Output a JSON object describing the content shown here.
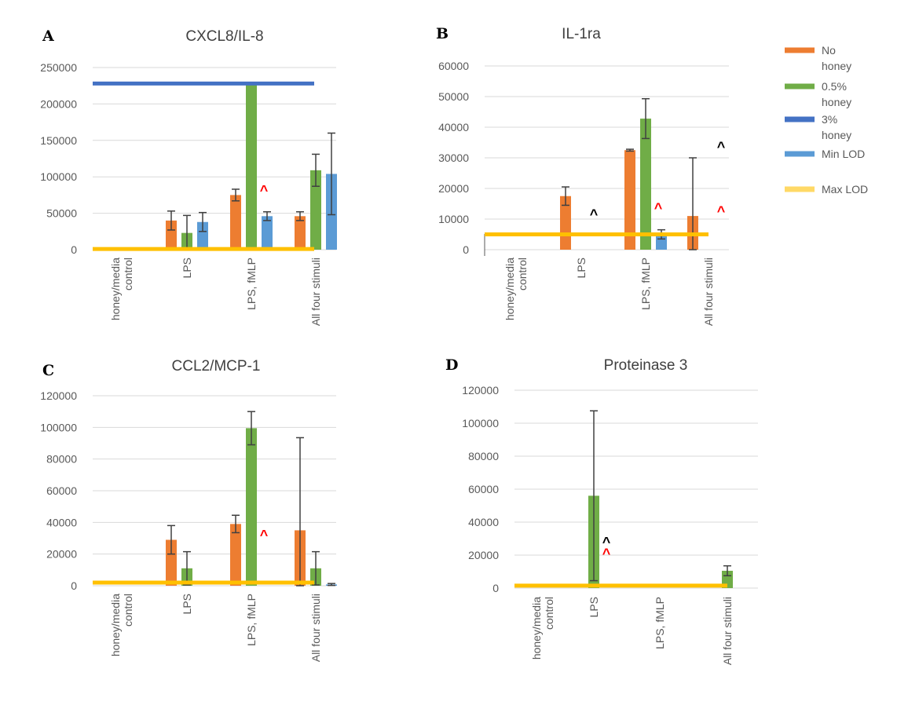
{
  "colors": {
    "no_honey": "#ED7D31",
    "honey_05": "#70AD47",
    "honey_3": "#4472C4",
    "min_lod": "#5B9BD5",
    "max_lod": "#FFC000",
    "grid": "#D9D9D9",
    "err": "#404040",
    "caret_red": "#FF0000",
    "caret_black": "#000000"
  },
  "legend": [
    {
      "lines": [
        "No",
        "honey"
      ],
      "color": "#ED7D31"
    },
    {
      "lines": [
        "0.5%",
        "honey"
      ],
      "color": "#70AD47"
    },
    {
      "lines": [
        "3%",
        "honey"
      ],
      "color": "#4472C4"
    },
    {
      "lines": [
        "Min LOD"
      ],
      "color": "#5B9BD5"
    },
    {
      "lines": [
        "Max LOD"
      ],
      "color": "#FFD966"
    }
  ],
  "chart_data": [
    {
      "panel": "A",
      "title": "CXCL8/IL-8",
      "type": "bar",
      "categories": [
        "honey/media control",
        "LPS",
        "LPS, fMLP",
        "All four stimuli"
      ],
      "yticks": [
        0,
        50000,
        100000,
        150000,
        200000,
        250000
      ],
      "ylim": [
        0,
        250000
      ],
      "series": [
        {
          "name": "No honey",
          "values": [
            null,
            40000,
            75000,
            46000
          ],
          "err": [
            null,
            13000,
            8000,
            6000
          ]
        },
        {
          "name": "0.5% honey",
          "values": [
            null,
            23000,
            228000,
            109000
          ],
          "err": [
            null,
            24000,
            null,
            22000
          ]
        },
        {
          "name": "3% honey",
          "values": [
            null,
            38000,
            46000,
            104000
          ],
          "err": [
            null,
            13000,
            6000,
            56000
          ]
        }
      ],
      "lines": [
        {
          "name": "3% honey",
          "y": 228000
        },
        {
          "name": "Max LOD",
          "y": 1000
        }
      ],
      "markers": [
        {
          "text": "^",
          "color": "red",
          "cat": 2,
          "y": 75000
        }
      ]
    },
    {
      "panel": "B",
      "title": "IL-1ra",
      "type": "bar",
      "categories": [
        "honey/media control",
        "LPS",
        "LPS, fMLP",
        "All four stimuli"
      ],
      "yticks": [
        0,
        10000,
        20000,
        30000,
        40000,
        50000,
        60000
      ],
      "ylim": [
        0,
        60000
      ],
      "series": [
        {
          "name": "No honey",
          "values": [
            null,
            17500,
            32500,
            11000
          ],
          "err": [
            null,
            3000,
            300,
            19000
          ]
        },
        {
          "name": "0.5% honey",
          "values": [
            null,
            null,
            42800,
            null
          ],
          "err": [
            null,
            null,
            6500,
            null
          ]
        },
        {
          "name": "3% honey",
          "values": [
            null,
            null,
            5000,
            null
          ],
          "err": [
            null,
            null,
            1500,
            null
          ]
        }
      ],
      "lines": [
        {
          "name": "Max LOD",
          "y": 5000
        }
      ],
      "markers": [
        {
          "text": "^",
          "color": "black",
          "cat": 1,
          "y": 10000
        },
        {
          "text": "^",
          "color": "red",
          "cat": 2,
          "y": 12000
        },
        {
          "text": "^",
          "color": "black",
          "cat": 3,
          "y": 32000
        },
        {
          "text": "^",
          "color": "red",
          "cat": 3,
          "y": 11000
        }
      ]
    },
    {
      "panel": "C",
      "title": "CCL2/MCP-1",
      "type": "bar",
      "categories": [
        "honey/media control",
        "LPS",
        "LPS, fMLP",
        "All four stimuli"
      ],
      "yticks": [
        0,
        20000,
        40000,
        60000,
        80000,
        100000,
        120000
      ],
      "ylim": [
        0,
        120000
      ],
      "series": [
        {
          "name": "No honey",
          "values": [
            null,
            29000,
            39000,
            35000
          ],
          "err": [
            null,
            9000,
            5500,
            58500
          ]
        },
        {
          "name": "0.5% honey",
          "values": [
            null,
            11000,
            99500,
            11000
          ],
          "err": [
            null,
            10500,
            10500,
            10500
          ]
        },
        {
          "name": "3% honey",
          "values": [
            null,
            null,
            null,
            800
          ],
          "err": [
            null,
            null,
            null,
            600
          ]
        }
      ],
      "lines": [
        {
          "name": "Max LOD",
          "y": 2000
        }
      ],
      "markers": [
        {
          "text": "^",
          "color": "red",
          "cat": 2,
          "y": 29000
        }
      ]
    },
    {
      "panel": "D",
      "title": "Proteinase 3",
      "type": "bar",
      "categories": [
        "honey/media control",
        "LPS",
        "LPS, fMLP",
        "All four stimuli"
      ],
      "yticks": [
        0,
        20000,
        40000,
        60000,
        80000,
        100000,
        120000
      ],
      "ylim": [
        0,
        120000
      ],
      "series": [
        {
          "name": "No honey",
          "values": [
            null,
            null,
            null,
            null
          ],
          "err": [
            null,
            null,
            null,
            null
          ]
        },
        {
          "name": "0.5% honey",
          "values": [
            null,
            56000,
            null,
            10500
          ],
          "err": [
            null,
            51500,
            null,
            3000
          ]
        },
        {
          "name": "3% honey",
          "values": [
            null,
            null,
            null,
            null
          ],
          "err": [
            null,
            null,
            null,
            null
          ]
        }
      ],
      "lines": [
        {
          "name": "Max LOD",
          "y": 1500
        }
      ],
      "markers": [
        {
          "text": "^",
          "color": "black",
          "cat": 1,
          "y": 25000
        },
        {
          "text": "^",
          "color": "red",
          "cat": 1,
          "y": 18000
        }
      ]
    }
  ]
}
